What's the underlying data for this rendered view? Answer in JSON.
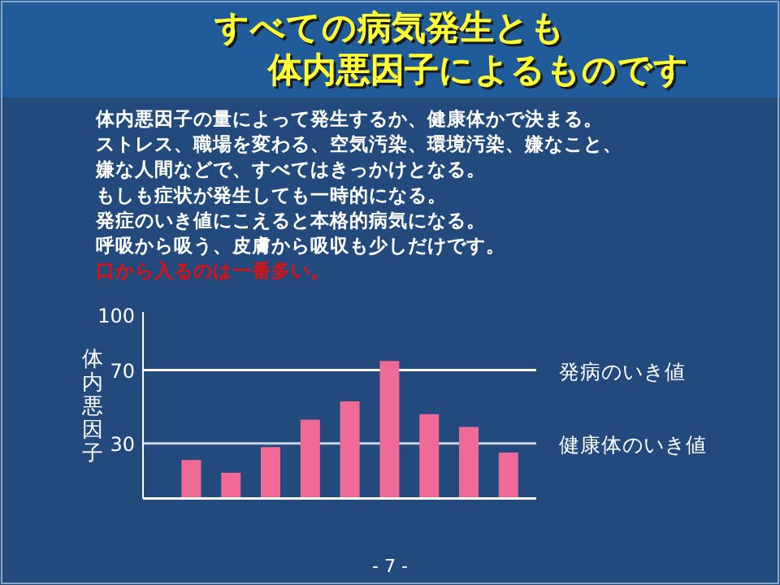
{
  "chart_data": {
    "type": "bar",
    "title": "すべての病気発生とも",
    "subtitle": "体内悪因子によるものです",
    "ylabel": "体内悪因子",
    "categories": [
      null,
      null,
      null,
      null,
      null,
      null,
      null,
      null,
      null
    ],
    "values": [
      21,
      14,
      28,
      43,
      53,
      75,
      46,
      39,
      25
    ],
    "color": "#f06a98",
    "ylim": [
      0,
      100
    ],
    "yticks": [
      30,
      70,
      100
    ],
    "grid": false,
    "ref_lines": [
      {
        "axis": "y",
        "value": 70,
        "label": "発病のいき値",
        "color": "#ffffff"
      },
      {
        "axis": "y",
        "value": 30,
        "label": "健康体のいき値",
        "color": "#c9d3e3"
      }
    ],
    "annotations": [
      "体内悪因子の量によって発生するか、健康体かで決まる。",
      "ストレス、職場を変わる、空気汚染、環境汚染、嫌なこと、",
      "嫌な人間などで、すべてはきっかけとなる。",
      "もしも症状が発生しても一時的になる。",
      "発症のいき値にこえると本格的病気になる。",
      "呼吸から吸う、皮膚から吸収も少しだけです。",
      "口から入るのは一番多い。",
      "- 7 -"
    ]
  }
}
